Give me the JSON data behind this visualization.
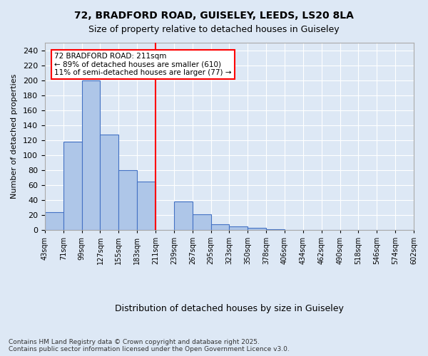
{
  "title1": "72, BRADFORD ROAD, GUISELEY, LEEDS, LS20 8LA",
  "title2": "Size of property relative to detached houses in Guiseley",
  "xlabel": "Distribution of detached houses by size in Guiseley",
  "ylabel": "Number of detached properties",
  "bin_labels": [
    "43sqm",
    "71sqm",
    "99sqm",
    "127sqm",
    "155sqm",
    "183sqm",
    "211sqm",
    "239sqm",
    "267sqm",
    "295sqm",
    "323sqm",
    "350sqm",
    "378sqm",
    "406sqm",
    "434sqm",
    "462sqm",
    "490sqm",
    "518sqm",
    "546sqm",
    "574sqm",
    "602sqm"
  ],
  "bar_heights": [
    24,
    118,
    200,
    127,
    80,
    65,
    0,
    38,
    21,
    8,
    5,
    3,
    1,
    0,
    0,
    0,
    0,
    0,
    0,
    0
  ],
  "bar_color": "#aec6e8",
  "bar_edge_color": "#4472c4",
  "vline_x": 6,
  "vline_color": "red",
  "annotation_text": "72 BRADFORD ROAD: 211sqm\n← 89% of detached houses are smaller (610)\n11% of semi-detached houses are larger (77) →",
  "annotation_box_color": "white",
  "annotation_box_edge": "red",
  "ylim": [
    0,
    250
  ],
  "yticks": [
    0,
    20,
    40,
    60,
    80,
    100,
    120,
    140,
    160,
    180,
    200,
    220,
    240
  ],
  "footer1": "Contains HM Land Registry data © Crown copyright and database right 2025.",
  "footer2": "Contains public sector information licensed under the Open Government Licence v3.0.",
  "bg_color": "#dde8f5",
  "plot_bg_color": "#dde8f5"
}
